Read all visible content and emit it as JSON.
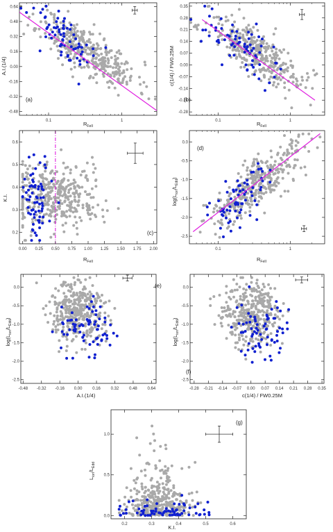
{
  "colors": {
    "gray_points": "#a9a9a9",
    "blue_points": "#1020d0",
    "fit_line": "#e020e0",
    "axis": "#222222",
    "background": "#ffffff"
  },
  "chart_data": [
    {
      "id": "a",
      "type": "scatter",
      "panel_label": "(a)",
      "xlabel": "R_FeII",
      "ylabel": "A.I.(1/4)",
      "xscale": "log",
      "xlim": [
        0.04,
        3.0
      ],
      "ylim": [
        -0.52,
        0.68
      ],
      "xticks": [
        0.1,
        1
      ],
      "xtick_labels": [
        "0.1",
        "1"
      ],
      "yticks": [
        -0.48,
        -0.32,
        -0.16,
        0.0,
        0.16,
        0.32,
        0.48,
        0.64
      ],
      "ytick_labels": [
        "-0.48",
        "-0.32",
        "-0.16",
        "0.00",
        "0.16",
        "0.32",
        "0.48",
        "0.64"
      ],
      "fit_line": {
        "x": [
          0.04,
          3.0
        ],
        "y": [
          0.58,
          -0.47
        ]
      },
      "error_bar": {
        "x": 1.5,
        "y": 0.6,
        "dx_log": 0.035,
        "dy": 0.04
      },
      "gray": {
        "n": 380,
        "x_log_mean": -0.45,
        "x_log_sd": 0.33,
        "y_slope": -0.45,
        "y_intercept": -0.05,
        "y_sd": 0.12,
        "seed": 11
      },
      "blue": {
        "n": 70,
        "x_log_mean": -0.75,
        "x_log_sd": 0.25,
        "y_slope": -0.45,
        "y_intercept": -0.05,
        "y_sd": 0.13,
        "seed": 12
      }
    },
    {
      "id": "b",
      "type": "scatter",
      "panel_label": "(b)",
      "xlabel": "R_FeII",
      "ylabel": "c(1/4) / FW0.25M",
      "xscale": "log",
      "xlim": [
        0.04,
        3.0
      ],
      "ylim": [
        -0.3,
        0.37
      ],
      "xticks": [
        0.1,
        1
      ],
      "xtick_labels": [
        "0.1",
        "1"
      ],
      "yticks": [
        -0.28,
        -0.21,
        -0.14,
        -0.07,
        0.0,
        0.07,
        0.14,
        0.21,
        0.28,
        0.35
      ],
      "ytick_labels": [
        "-0.28",
        "-0.21",
        "-0.14",
        "-0.07",
        "0.00",
        "0.07",
        "0.14",
        "0.21",
        "0.28",
        "0.35"
      ],
      "fit_line": {
        "x": [
          0.06,
          2.2
        ],
        "y": [
          0.27,
          -0.21
        ]
      },
      "error_bar": {
        "x": 1.45,
        "y": 0.3,
        "dx_log": 0.035,
        "dy": 0.03
      },
      "gray": {
        "n": 380,
        "x_log_mean": -0.45,
        "x_log_sd": 0.33,
        "y_slope": -0.25,
        "y_intercept": -0.05,
        "y_sd": 0.065,
        "seed": 21
      },
      "blue": {
        "n": 70,
        "x_log_mean": -0.75,
        "x_log_sd": 0.25,
        "y_slope": -0.25,
        "y_intercept": -0.05,
        "y_sd": 0.07,
        "seed": 22
      }
    },
    {
      "id": "c",
      "type": "scatter",
      "panel_label": "(c)",
      "xlabel": "R_FeII",
      "ylabel": "K.I.",
      "xscale": "linear",
      "xlim": [
        -0.05,
        2.05
      ],
      "ylim": [
        0.15,
        0.65
      ],
      "xticks": [
        0.0,
        0.25,
        0.5,
        0.75,
        1.0,
        1.25,
        1.5,
        1.75,
        2.0
      ],
      "xtick_labels": [
        "0.00",
        "0.25",
        "0.50",
        "0.75",
        "1.00",
        "1.25",
        "1.50",
        "1.75",
        "2.00"
      ],
      "yticks": [
        0.2,
        0.3,
        0.4,
        0.5,
        0.6
      ],
      "ytick_labels": [
        "0.2",
        "0.3",
        "0.4",
        "0.5",
        "0.6"
      ],
      "vline": 0.5,
      "error_bar": {
        "x": 1.72,
        "y": 0.55,
        "dx": 0.12,
        "dy": 0.045
      },
      "gray": {
        "n": 380,
        "x_mean": 0.5,
        "x_sd": 0.35,
        "x_min": 0.0,
        "x_max": 1.95,
        "y_mean": 0.36,
        "y_sd": 0.07,
        "seed": 31
      },
      "blue": {
        "n": 70,
        "x_mean": 0.2,
        "x_sd": 0.13,
        "x_min": 0.0,
        "x_max": 0.6,
        "y_mean": 0.36,
        "y_sd": 0.09,
        "seed": 32
      }
    },
    {
      "id": "d",
      "type": "scatter",
      "panel_label": "(d)",
      "xlabel": "R_FeII",
      "ylabel": "log(L_ion/L_Edd)",
      "xscale": "log",
      "xlim": [
        0.04,
        3.0
      ],
      "ylim": [
        -2.7,
        0.3
      ],
      "xticks": [
        0.1,
        1
      ],
      "xtick_labels": [
        "0.1",
        "1"
      ],
      "yticks": [
        -2.5,
        -2.0,
        -1.5,
        -1.0,
        -0.5,
        0.0
      ],
      "ytick_labels": [
        "-2.5",
        "-2.0",
        "-1.5",
        "-1.0",
        "-0.5",
        "0.0"
      ],
      "fit_line": {
        "x": [
          0.045,
          2.6
        ],
        "y": [
          -2.38,
          0.22
        ]
      },
      "error_bar": {
        "x": 1.55,
        "y": -2.3,
        "dx_log": 0.035,
        "dy": 0.08
      },
      "gray": {
        "n": 380,
        "x_log_mean": -0.45,
        "x_log_sd": 0.33,
        "y_slope": 1.45,
        "y_intercept": -0.45,
        "y_sd": 0.32,
        "seed": 41
      },
      "blue": {
        "n": 70,
        "x_log_mean": -0.75,
        "x_log_sd": 0.25,
        "y_slope": 1.45,
        "y_intercept": -0.45,
        "y_sd": 0.35,
        "seed": 42
      }
    },
    {
      "id": "e",
      "type": "scatter",
      "panel_label": "(e)",
      "xlabel": "A.I.(1/4)",
      "ylabel": "log(L_ion/L_Edd)",
      "xscale": "linear",
      "xlim": [
        -0.5,
        0.68
      ],
      "ylim": [
        -2.6,
        0.35
      ],
      "xticks": [
        -0.48,
        -0.32,
        -0.16,
        0.0,
        0.16,
        0.32,
        0.48,
        0.64
      ],
      "xtick_labels": [
        "-0.48",
        "-0.32",
        "-0.16",
        "0.00",
        "0.16",
        "0.32",
        "0.48",
        "0.64"
      ],
      "yticks": [
        -2.5,
        -2.0,
        -1.5,
        -1.0,
        -0.5,
        0.0
      ],
      "ytick_labels": [
        "-2.5",
        "-2.0",
        "-1.5",
        "-1.0",
        "-0.5",
        "0.0"
      ],
      "error_bar": {
        "x": 0.43,
        "y": 0.25,
        "dx": 0.04,
        "dy": 0.08
      },
      "gray": {
        "n": 380,
        "x_mean": 0.0,
        "x_sd": 0.12,
        "x_min": -0.38,
        "x_max": 0.4,
        "y_mean": -0.7,
        "y_sd": 0.42,
        "seed": 51
      },
      "blue": {
        "n": 70,
        "x_mean": 0.08,
        "x_sd": 0.12,
        "x_min": -0.25,
        "x_max": 0.58,
        "y_mean": -1.15,
        "y_sd": 0.38,
        "seed": 52
      }
    },
    {
      "id": "f",
      "type": "scatter",
      "panel_label": "(f)",
      "xlabel": "c(1/4) / FW0.25M",
      "ylabel": "log(L_ion/L_Edd)",
      "xscale": "linear",
      "xlim": [
        -0.3,
        0.36
      ],
      "ylim": [
        -2.6,
        0.35
      ],
      "xticks": [
        -0.28,
        -0.21,
        -0.14,
        -0.07,
        0.0,
        0.07,
        0.14,
        0.21,
        0.28,
        0.35
      ],
      "xtick_labels": [
        "-0.28",
        "-0.21",
        "-0.14",
        "-0.07",
        "0.00",
        "0.07",
        "0.14",
        "0.21",
        "0.28",
        "0.35"
      ],
      "yticks": [
        -2.5,
        -2.0,
        -1.5,
        -1.0,
        -0.5,
        0.0
      ],
      "ytick_labels": [
        "-2.5",
        "-2.0",
        "-1.5",
        "-1.0",
        "-0.5",
        "0.0"
      ],
      "error_bar": {
        "x": 0.25,
        "y": 0.2,
        "dx": 0.03,
        "dy": 0.08
      },
      "gray": {
        "n": 380,
        "x_mean": 0.0,
        "x_sd": 0.07,
        "x_min": -0.2,
        "x_max": 0.22,
        "y_mean": -0.7,
        "y_sd": 0.42,
        "seed": 61
      },
      "blue": {
        "n": 70,
        "x_mean": 0.05,
        "x_sd": 0.06,
        "x_min": -0.12,
        "x_max": 0.3,
        "y_mean": -1.15,
        "y_sd": 0.38,
        "seed": 62
      }
    },
    {
      "id": "g",
      "type": "scatter",
      "panel_label": "(g)",
      "xlabel": "K.I.",
      "ylabel": "L_ion/L_Edd",
      "xscale": "linear",
      "xlim": [
        0.15,
        0.65
      ],
      "ylim": [
        -0.04,
        1.3
      ],
      "xticks": [
        0.2,
        0.3,
        0.4,
        0.5,
        0.6
      ],
      "xtick_labels": [
        "0.2",
        "0.3",
        "0.4",
        "0.5",
        "0.6"
      ],
      "yticks": [
        0.0,
        0.5,
        1.0
      ],
      "ytick_labels": [
        "0.0",
        "0.5",
        "1.0"
      ],
      "error_bar": {
        "x": 0.55,
        "y": 1.0,
        "dx": 0.05,
        "dy": 0.1
      },
      "gray": {
        "n": 380,
        "x_mean": 0.33,
        "x_sd": 0.06,
        "x_min": 0.18,
        "x_max": 0.62,
        "y_exp": 0.2,
        "y_max": 1.25,
        "seed": 71
      },
      "blue": {
        "n": 70,
        "x_mean": 0.35,
        "x_sd": 0.08,
        "x_min": 0.18,
        "x_max": 0.62,
        "y_exp": 0.06,
        "y_max": 0.35,
        "seed": 72
      }
    }
  ]
}
